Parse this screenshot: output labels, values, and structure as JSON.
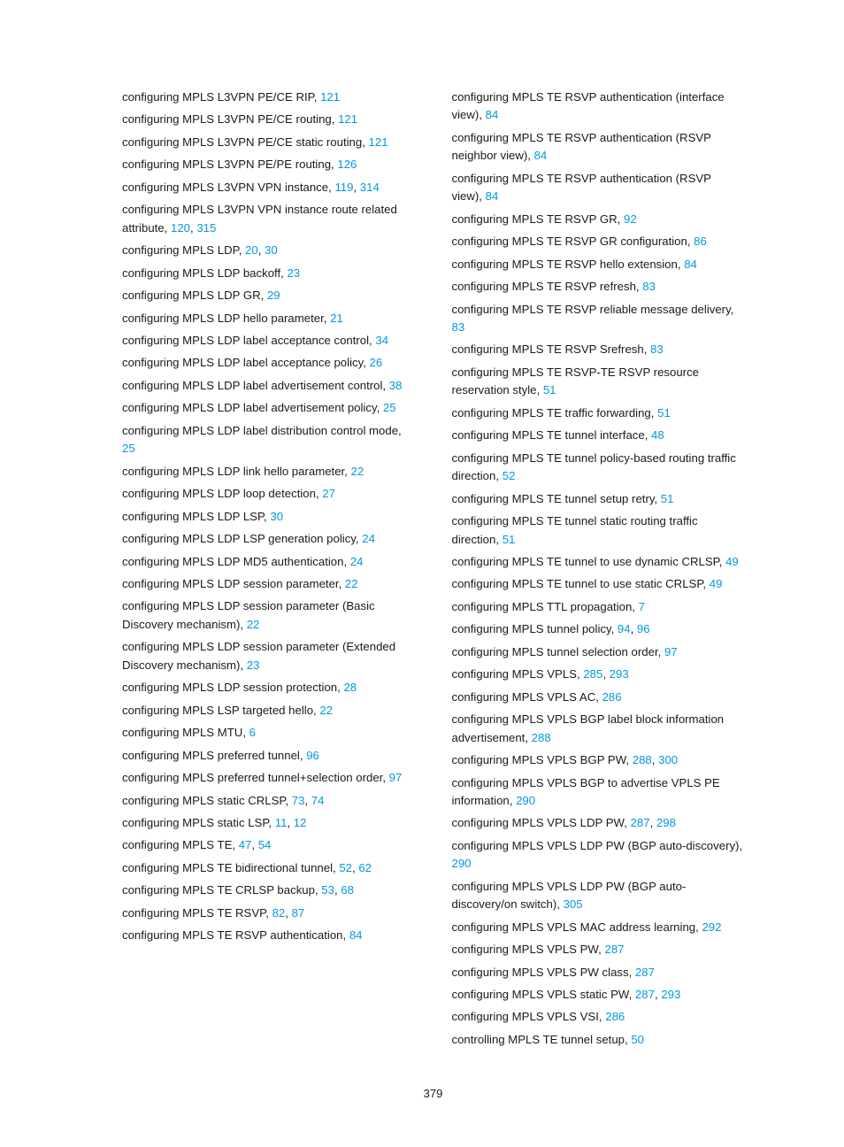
{
  "page_number": "379",
  "text_color": "#1a1a1a",
  "link_color": "#0099dd",
  "background_color": "#ffffff",
  "font_family": "Arial",
  "font_size_pt": 10,
  "left_column": [
    {
      "text": "configuring MPLS L3VPN PE/CE RIP, ",
      "refs": [
        "121"
      ]
    },
    {
      "text": "configuring MPLS L3VPN PE/CE routing, ",
      "refs": [
        "121"
      ]
    },
    {
      "text": "configuring MPLS L3VPN PE/CE static routing, ",
      "refs": [
        "121"
      ]
    },
    {
      "text": "configuring MPLS L3VPN PE/PE routing, ",
      "refs": [
        "126"
      ]
    },
    {
      "text": "configuring MPLS L3VPN VPN instance, ",
      "refs": [
        "119",
        "314"
      ]
    },
    {
      "text": "configuring MPLS L3VPN VPN instance route related attribute, ",
      "refs": [
        "120",
        "315"
      ]
    },
    {
      "text": "configuring MPLS LDP, ",
      "refs": [
        "20",
        "30"
      ]
    },
    {
      "text": "configuring MPLS LDP backoff, ",
      "refs": [
        "23"
      ]
    },
    {
      "text": "configuring MPLS LDP GR, ",
      "refs": [
        "29"
      ]
    },
    {
      "text": "configuring MPLS LDP hello parameter, ",
      "refs": [
        "21"
      ]
    },
    {
      "text": "configuring MPLS LDP label acceptance control, ",
      "refs": [
        "34"
      ]
    },
    {
      "text": "configuring MPLS LDP label acceptance policy, ",
      "refs": [
        "26"
      ]
    },
    {
      "text": "configuring MPLS LDP label advertisement control, ",
      "refs": [
        "38"
      ]
    },
    {
      "text": "configuring MPLS LDP label advertisement policy, ",
      "refs": [
        "25"
      ]
    },
    {
      "text": "configuring MPLS LDP label distribution control mode, ",
      "refs": [
        "25"
      ]
    },
    {
      "text": "configuring MPLS LDP link hello parameter, ",
      "refs": [
        "22"
      ]
    },
    {
      "text": "configuring MPLS LDP loop detection, ",
      "refs": [
        "27"
      ]
    },
    {
      "text": "configuring MPLS LDP LSP, ",
      "refs": [
        "30"
      ]
    },
    {
      "text": "configuring MPLS LDP LSP generation policy, ",
      "refs": [
        "24"
      ]
    },
    {
      "text": "configuring MPLS LDP MD5 authentication, ",
      "refs": [
        "24"
      ]
    },
    {
      "text": "configuring MPLS LDP session parameter, ",
      "refs": [
        "22"
      ]
    },
    {
      "text": "configuring MPLS LDP session parameter (Basic Discovery mechanism), ",
      "refs": [
        "22"
      ]
    },
    {
      "text": "configuring MPLS LDP session parameter (Extended Discovery mechanism), ",
      "refs": [
        "23"
      ]
    },
    {
      "text": "configuring MPLS LDP session protection, ",
      "refs": [
        "28"
      ]
    },
    {
      "text": "configuring MPLS LSP targeted hello, ",
      "refs": [
        "22"
      ]
    },
    {
      "text": "configuring MPLS MTU, ",
      "refs": [
        "6"
      ]
    },
    {
      "text": "configuring MPLS preferred tunnel, ",
      "refs": [
        "96"
      ]
    },
    {
      "text": "configuring MPLS preferred tunnel+selection order, ",
      "refs": [
        "97"
      ]
    },
    {
      "text": "configuring MPLS static CRLSP, ",
      "refs": [
        "73",
        "74"
      ]
    },
    {
      "text": "configuring MPLS static LSP, ",
      "refs": [
        "11",
        "12"
      ]
    },
    {
      "text": "configuring MPLS TE, ",
      "refs": [
        "47",
        "54"
      ]
    },
    {
      "text": "configuring MPLS TE bidirectional tunnel, ",
      "refs": [
        "52",
        "62"
      ]
    },
    {
      "text": "configuring MPLS TE CRLSP backup, ",
      "refs": [
        "53",
        "68"
      ]
    },
    {
      "text": "configuring MPLS TE RSVP, ",
      "refs": [
        "82",
        "87"
      ]
    },
    {
      "text": "configuring MPLS TE RSVP authentication, ",
      "refs": [
        "84"
      ]
    }
  ],
  "right_column": [
    {
      "text": "configuring MPLS TE RSVP authentication (interface view), ",
      "refs": [
        "84"
      ]
    },
    {
      "text": "configuring MPLS TE RSVP authentication (RSVP neighbor view), ",
      "refs": [
        "84"
      ]
    },
    {
      "text": "configuring MPLS TE RSVP authentication (RSVP view), ",
      "refs": [
        "84"
      ]
    },
    {
      "text": "configuring MPLS TE RSVP GR, ",
      "refs": [
        "92"
      ]
    },
    {
      "text": "configuring MPLS TE RSVP GR configuration, ",
      "refs": [
        "86"
      ]
    },
    {
      "text": "configuring MPLS TE RSVP hello extension, ",
      "refs": [
        "84"
      ]
    },
    {
      "text": "configuring MPLS TE RSVP refresh, ",
      "refs": [
        "83"
      ]
    },
    {
      "text": "configuring MPLS TE RSVP reliable message delivery, ",
      "refs": [
        "83"
      ]
    },
    {
      "text": "configuring MPLS TE RSVP Srefresh, ",
      "refs": [
        "83"
      ]
    },
    {
      "text": "configuring MPLS TE RSVP-TE RSVP resource reservation style, ",
      "refs": [
        "51"
      ]
    },
    {
      "text": "configuring MPLS TE traffic forwarding, ",
      "refs": [
        "51"
      ]
    },
    {
      "text": "configuring MPLS TE tunnel interface, ",
      "refs": [
        "48"
      ]
    },
    {
      "text": "configuring MPLS TE tunnel policy-based routing traffic direction, ",
      "refs": [
        "52"
      ]
    },
    {
      "text": "configuring MPLS TE tunnel setup retry, ",
      "refs": [
        "51"
      ]
    },
    {
      "text": "configuring MPLS TE tunnel static routing traffic direction, ",
      "refs": [
        "51"
      ]
    },
    {
      "text": "configuring MPLS TE tunnel to use dynamic CRLSP, ",
      "refs": [
        "49"
      ]
    },
    {
      "text": "configuring MPLS TE tunnel to use static CRLSP, ",
      "refs": [
        "49"
      ]
    },
    {
      "text": "configuring MPLS TTL propagation, ",
      "refs": [
        "7"
      ]
    },
    {
      "text": "configuring MPLS tunnel policy, ",
      "refs": [
        "94",
        "96"
      ]
    },
    {
      "text": "configuring MPLS tunnel selection order, ",
      "refs": [
        "97"
      ]
    },
    {
      "text": "configuring MPLS VPLS, ",
      "refs": [
        "285",
        "293"
      ]
    },
    {
      "text": "configuring MPLS VPLS AC, ",
      "refs": [
        "286"
      ]
    },
    {
      "text": "configuring MPLS VPLS BGP label block information advertisement, ",
      "refs": [
        "288"
      ]
    },
    {
      "text": "configuring MPLS VPLS BGP PW, ",
      "refs": [
        "288",
        "300"
      ]
    },
    {
      "text": "configuring MPLS VPLS BGP to advertise VPLS PE information, ",
      "refs": [
        "290"
      ]
    },
    {
      "text": "configuring MPLS VPLS LDP PW, ",
      "refs": [
        "287",
        "298"
      ]
    },
    {
      "text": "configuring MPLS VPLS LDP PW (BGP auto-discovery), ",
      "refs": [
        "290"
      ]
    },
    {
      "text": "configuring MPLS VPLS LDP PW (BGP auto-discovery/on switch), ",
      "refs": [
        "305"
      ]
    },
    {
      "text": "configuring MPLS VPLS MAC address learning, ",
      "refs": [
        "292"
      ]
    },
    {
      "text": "configuring MPLS VPLS PW, ",
      "refs": [
        "287"
      ]
    },
    {
      "text": "configuring MPLS VPLS PW class, ",
      "refs": [
        "287"
      ]
    },
    {
      "text": "configuring MPLS VPLS static PW, ",
      "refs": [
        "287",
        "293"
      ]
    },
    {
      "text": "configuring MPLS VPLS VSI, ",
      "refs": [
        "286"
      ]
    },
    {
      "text": "controlling MPLS TE tunnel setup, ",
      "refs": [
        "50"
      ]
    }
  ]
}
